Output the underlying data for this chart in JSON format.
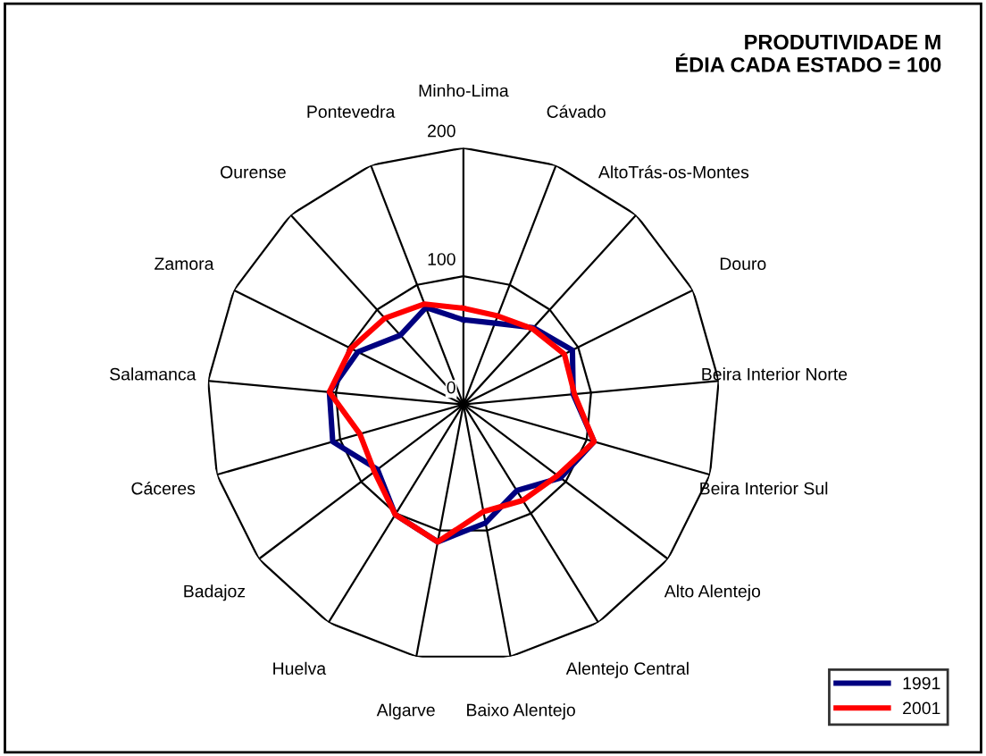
{
  "chart_data": {
    "type": "radar",
    "title": "PRODUTIVIDADE M\nÉDIA CADA ESTADO = 100",
    "categories": [
      "Minho-Lima",
      "Cávado",
      "AltoTrás-os-Montes",
      "Douro",
      "Beira Interior Norte",
      "Beira Interior Sul",
      "Alto Alentejo",
      "Alentejo Central",
      "Baixo Alentejo",
      "Algarve",
      "Huelva",
      "Badajoz",
      "Cáceres",
      "Salamanca",
      "Zamora",
      "Ourense",
      "Pontevedra"
    ],
    "series": [
      {
        "name": "1991",
        "color": "#000080",
        "values": [
          66,
          68,
          81,
          95,
          86,
          106,
          95,
          79,
          94,
          109,
          101,
          84,
          106,
          105,
          92,
          73,
          81
        ]
      },
      {
        "name": "2001",
        "color": "#ff0000",
        "values": [
          75,
          74,
          80,
          88,
          87,
          106,
          92,
          88,
          85,
          109,
          101,
          87,
          84,
          105,
          98,
          91,
          84
        ]
      }
    ],
    "ylim": [
      0,
      200
    ],
    "yticks": [
      0,
      100,
      200
    ],
    "grid": true,
    "legend": "bottom right",
    "marker": "none",
    "line_style": "solid"
  }
}
